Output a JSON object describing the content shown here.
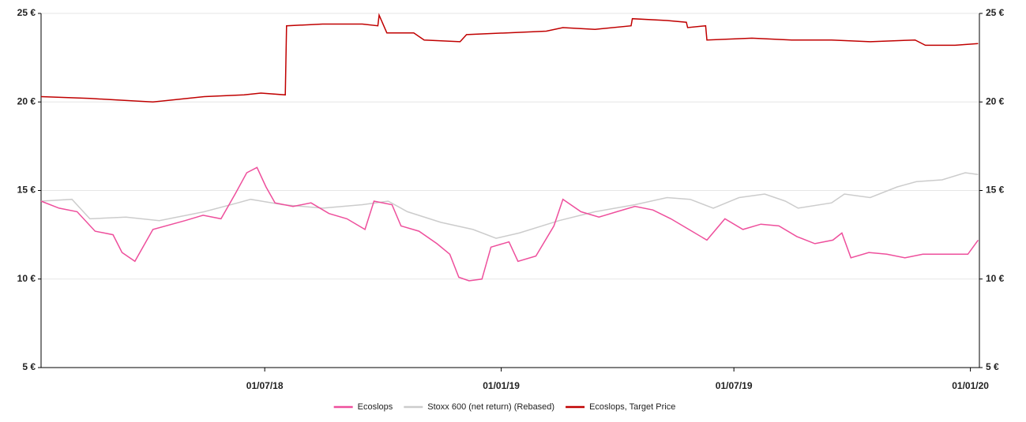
{
  "chart_data": {
    "type": "line",
    "xlim": [
      "08/01/18",
      "08/01/20"
    ],
    "xticks": [
      "01/07/18",
      "01/01/19",
      "01/07/19",
      "01/01/20"
    ],
    "ylim": [
      5,
      25
    ],
    "yticks": [
      {
        "value": 5,
        "label": "5 €"
      },
      {
        "value": 10,
        "label": "10 €"
      },
      {
        "value": 15,
        "label": "15 €"
      },
      {
        "value": 20,
        "label": "20 €"
      },
      {
        "value": 25,
        "label": "25 €"
      }
    ],
    "y2lim": [
      5,
      25
    ],
    "y2ticks": [
      {
        "value": 5,
        "label": "5 €"
      },
      {
        "value": 10,
        "label": "10 €"
      },
      {
        "value": 15,
        "label": "15 €"
      },
      {
        "value": 20,
        "label": "20 €"
      },
      {
        "value": 25,
        "label": "25 €"
      }
    ],
    "grid": true,
    "legend": "bottom",
    "series": [
      {
        "name": "Ecoslops",
        "color": "#ee4f9c",
        "x": [
          "08/01/18",
          "22/01/18",
          "05/02/18",
          "19/02/18",
          "05/03/18",
          "12/03/18",
          "22/03/18",
          "05/04/18",
          "30/04/18",
          "14/05/18",
          "28/05/18",
          "08/06/18",
          "17/06/18",
          "25/06/18",
          "02/07/18",
          "09/07/18",
          "23/07/18",
          "06/08/18",
          "20/08/18",
          "03/09/18",
          "17/09/18",
          "24/09/18",
          "08/10/18",
          "15/10/18",
          "29/10/18",
          "12/11/18",
          "22/11/18",
          "29/11/18",
          "07/12/18",
          "17/12/18",
          "24/12/18",
          "07/01/19",
          "14/01/19",
          "28/01/19",
          "11/02/19",
          "18/02/19",
          "04/03/19",
          "18/03/19",
          "01/04/19",
          "15/04/19",
          "29/04/19",
          "13/05/19",
          "27/05/19",
          "10/06/19",
          "24/06/19",
          "08/07/19",
          "22/07/19",
          "05/08/19",
          "19/08/19",
          "02/09/19",
          "16/09/19",
          "23/09/19",
          "30/09/19",
          "14/10/19",
          "28/10/19",
          "11/11/19",
          "25/11/19",
          "09/12/19",
          "23/12/19",
          "30/12/19",
          "07/01/20"
        ],
        "values": [
          14.4,
          14.0,
          13.8,
          12.7,
          12.5,
          11.5,
          11.0,
          12.8,
          13.3,
          13.6,
          13.4,
          14.8,
          16.0,
          16.3,
          15.2,
          14.3,
          14.1,
          14.3,
          13.7,
          13.4,
          12.8,
          14.4,
          14.2,
          13.0,
          12.7,
          12.0,
          11.4,
          10.1,
          9.9,
          10.0,
          11.8,
          12.1,
          11.0,
          11.3,
          13.0,
          14.5,
          13.8,
          13.5,
          13.8,
          14.1,
          13.9,
          13.4,
          12.8,
          12.2,
          13.4,
          12.8,
          13.1,
          13.0,
          12.4,
          12.0,
          12.2,
          12.6,
          11.2,
          11.5,
          11.4,
          11.2,
          11.4,
          11.4,
          11.4,
          11.4,
          12.2
        ]
      },
      {
        "name": "Stoxx 600 (net return) (Rebased)",
        "color": "#cccccc",
        "x": [
          "08/01/18",
          "01/02/18",
          "15/02/18",
          "15/03/18",
          "10/04/18",
          "15/05/18",
          "10/06/18",
          "20/06/18",
          "15/07/18",
          "15/08/18",
          "15/09/18",
          "05/10/18",
          "20/10/18",
          "15/11/18",
          "10/12/18",
          "28/12/18",
          "15/01/19",
          "15/02/19",
          "15/03/19",
          "15/04/19",
          "10/05/19",
          "28/05/19",
          "15/06/19",
          "05/07/19",
          "25/07/19",
          "10/08/19",
          "20/08/19",
          "15/09/19",
          "25/09/19",
          "15/10/19",
          "05/11/19",
          "20/11/19",
          "10/12/19",
          "28/12/19",
          "07/01/20"
        ],
        "values": [
          14.4,
          14.5,
          13.4,
          13.5,
          13.3,
          13.8,
          14.3,
          14.5,
          14.2,
          14.0,
          14.2,
          14.4,
          13.8,
          13.2,
          12.8,
          12.3,
          12.6,
          13.3,
          13.8,
          14.2,
          14.6,
          14.5,
          14.0,
          14.6,
          14.8,
          14.4,
          14.0,
          14.3,
          14.8,
          14.6,
          15.2,
          15.5,
          15.6,
          16.0,
          15.9
        ]
      },
      {
        "name": "Ecoslops, Target Price",
        "color": "#c00000",
        "x": [
          "08/01/18",
          "15/02/18",
          "05/04/18",
          "15/05/18",
          "15/06/18",
          "28/06/18",
          "17/07/18",
          "18/07/18",
          "15/08/18",
          "15/09/18",
          "27/09/18",
          "28/09/18",
          "04/10/18",
          "25/10/18",
          "02/11/18",
          "30/11/18",
          "05/12/18",
          "05/01/19",
          "05/02/19",
          "18/02/19",
          "15/03/19",
          "12/04/19",
          "13/04/19",
          "10/05/19",
          "25/05/19",
          "26/05/19",
          "09/06/19",
          "10/06/19",
          "15/07/19",
          "15/08/19",
          "15/09/19",
          "15/10/19",
          "19/11/19",
          "27/11/19",
          "20/12/19",
          "07/01/20"
        ],
        "values": [
          20.3,
          20.2,
          20.0,
          20.3,
          20.4,
          20.5,
          20.4,
          24.3,
          24.4,
          24.4,
          24.3,
          24.9,
          23.9,
          23.9,
          23.5,
          23.4,
          23.8,
          23.9,
          24.0,
          24.2,
          24.1,
          24.3,
          24.7,
          24.6,
          24.5,
          24.2,
          24.3,
          23.5,
          23.6,
          23.5,
          23.5,
          23.4,
          23.5,
          23.2,
          23.2,
          23.3
        ]
      }
    ]
  }
}
